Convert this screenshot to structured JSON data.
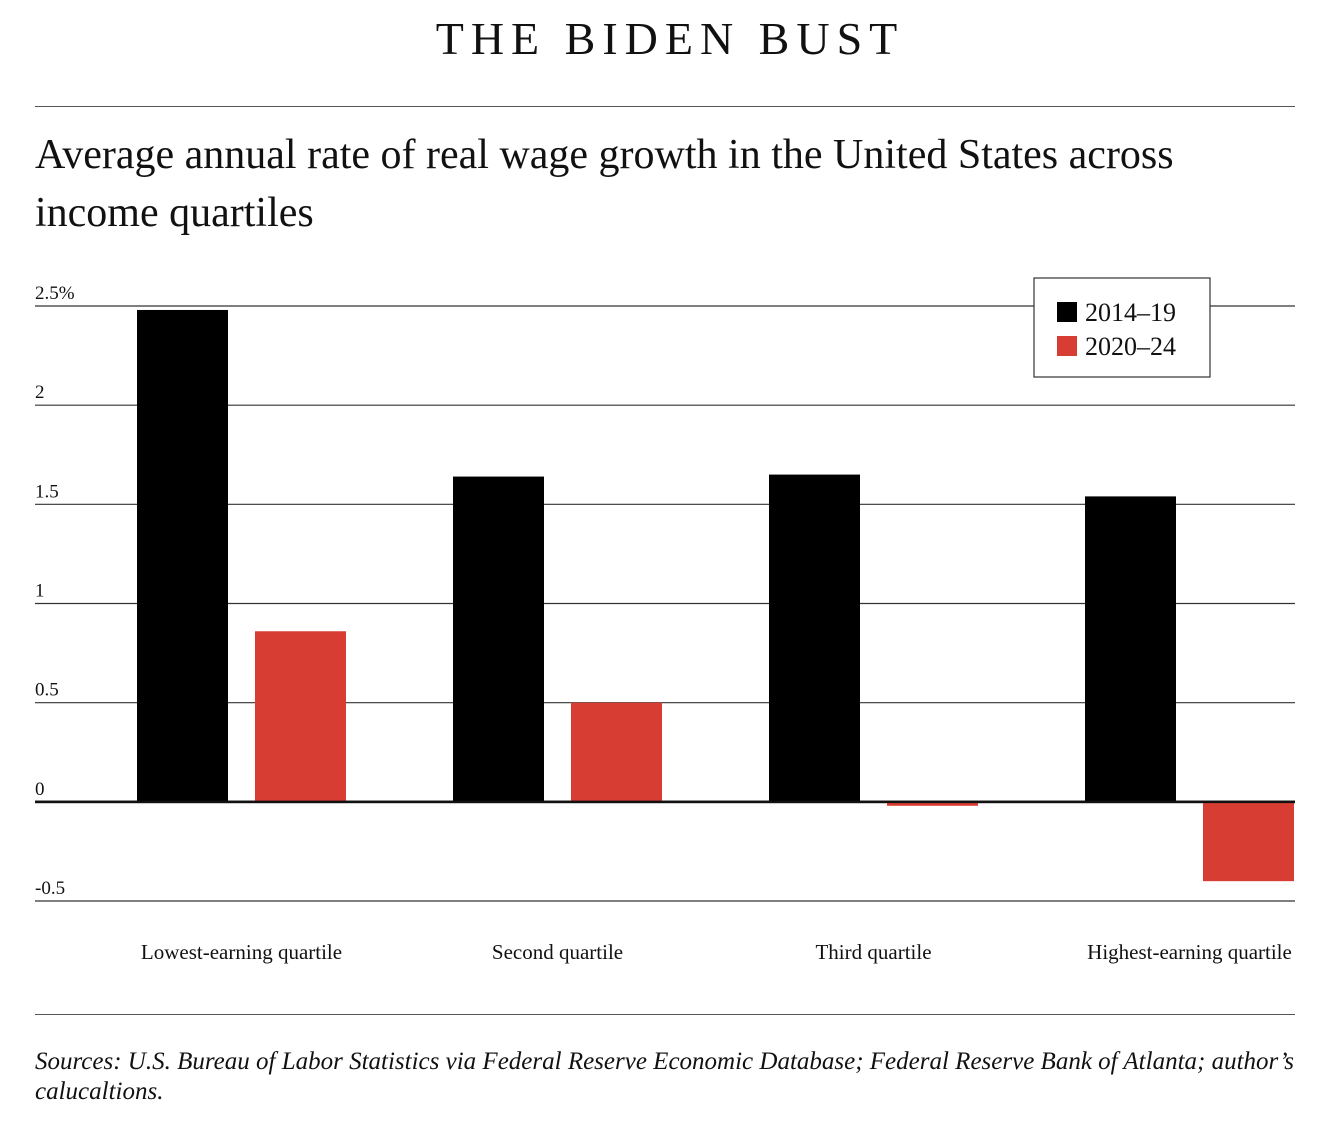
{
  "header": {
    "headline": "THE BIDEN BUST",
    "subtitle": "Average annual rate of real wage growth in the United States across income quartiles"
  },
  "footer": {
    "source": "Sources: U.S. Bureau of Labor Statistics via Federal Reserve Economic Database; Federal Reserve Bank of Atlanta; author’s calucaltions."
  },
  "chart_data": {
    "type": "bar",
    "title": "Average annual rate of real wage growth in the United States across income quartiles",
    "categories": [
      "Lowest-earning quartile",
      "Second quartile",
      "Third quartile",
      "Highest-earning quartile"
    ],
    "series": [
      {
        "name": "2014–19",
        "color": "#000000",
        "values": [
          2.48,
          1.64,
          1.65,
          1.54
        ]
      },
      {
        "name": "2020–24",
        "color": "#d83d33",
        "values": [
          0.86,
          0.5,
          -0.02,
          -0.4
        ]
      }
    ],
    "yticks": [
      {
        "value": 2.5,
        "label": "2.5%"
      },
      {
        "value": 2,
        "label": "2"
      },
      {
        "value": 1.5,
        "label": "1.5"
      },
      {
        "value": 1,
        "label": "1"
      },
      {
        "value": 0.5,
        "label": "0.5"
      },
      {
        "value": 0,
        "label": "0"
      },
      {
        "value": -0.5,
        "label": "-0.5"
      }
    ],
    "ylim": [
      -0.5,
      2.5
    ],
    "grid": true,
    "legend_position": "top-right"
  }
}
